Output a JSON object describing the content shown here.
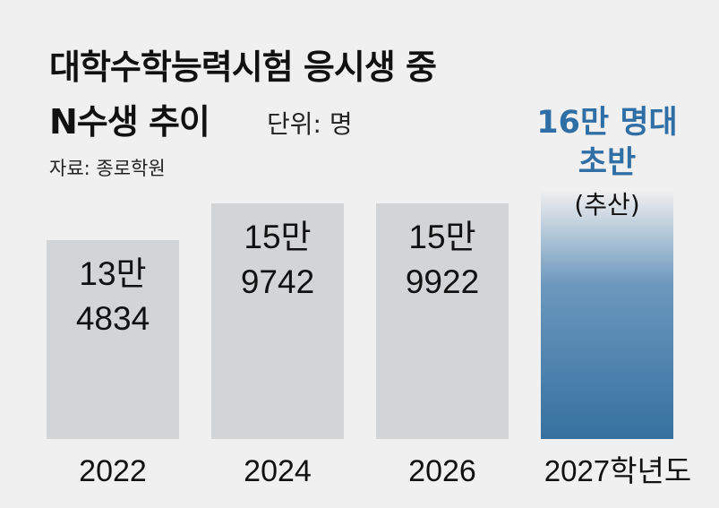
{
  "title_line1": "대학수학능력시험 응시생 중",
  "title_line2": "N수생 추이",
  "unit": "단위: 명",
  "source": "자료: 종로학원",
  "colors": {
    "bar": "#d3d4d6",
    "highlight_top": "#f0f0f0",
    "highlight_bottom": "#3571a0",
    "highlight_text": "#2f6fa5",
    "text": "#111111"
  },
  "chart_data": {
    "type": "bar",
    "categories": [
      "2022",
      "2024",
      "2026",
      "2027학년도"
    ],
    "values": [
      134834,
      159742,
      159922,
      160000
    ],
    "data_labels": [
      [
        "13만",
        "4834"
      ],
      [
        "15만",
        "9742"
      ],
      [
        "15만",
        "9922"
      ],
      [
        "16만 명대",
        "초반"
      ]
    ],
    "highlight_note": "(추산)",
    "highlight_index": 3
  }
}
